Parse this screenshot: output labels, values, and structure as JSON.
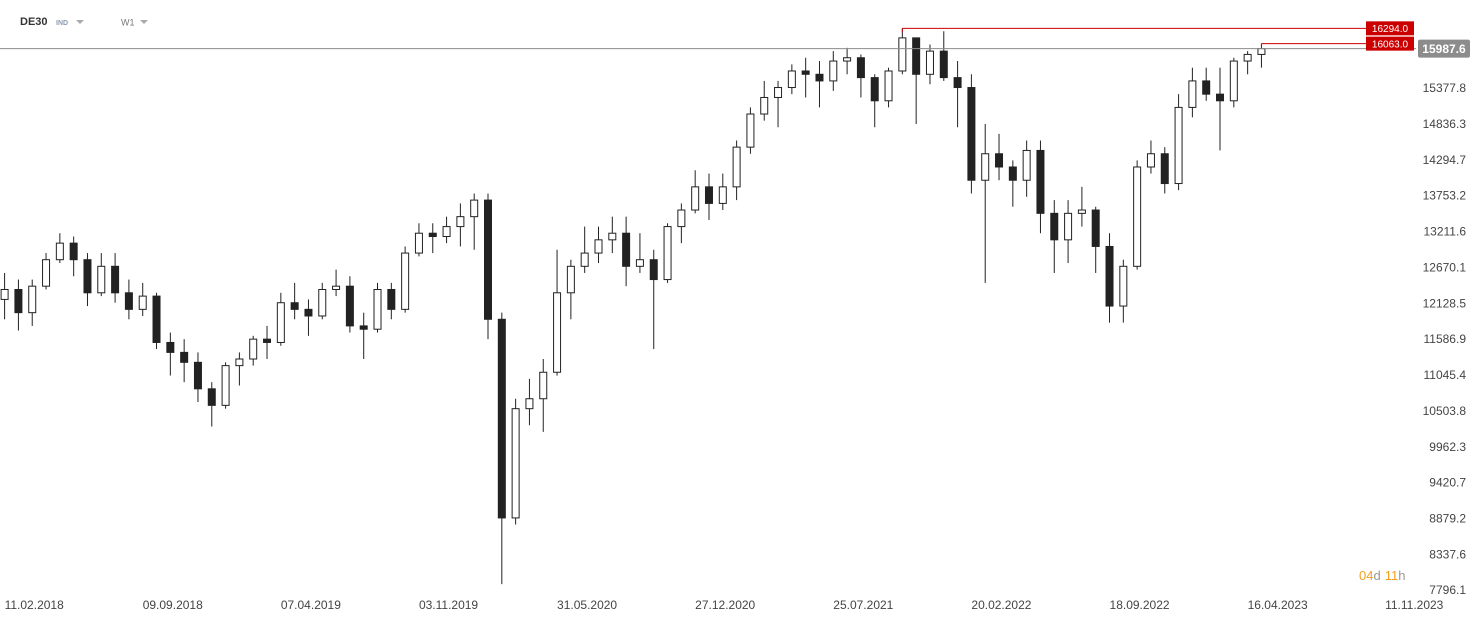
{
  "header": {
    "symbol": "DE30",
    "kind": "IND",
    "interval": "W1"
  },
  "countdown": {
    "days": "04",
    "days_unit": "d",
    "hours": "11",
    "hours_unit": "h"
  },
  "chart_data": {
    "type": "candlestick",
    "x": [
      "11.02.2018",
      "04.03.2018",
      "25.03.2018",
      "15.04.2018",
      "06.05.2018",
      "27.05.2018",
      "17.06.2018",
      "08.07.2018",
      "29.07.2018",
      "19.08.2018",
      "09.09.2018",
      "30.09.2018",
      "21.10.2018",
      "11.11.2018",
      "02.12.2018",
      "23.12.2018",
      "13.01.2019",
      "03.02.2019",
      "24.02.2019",
      "17.03.2019",
      "07.04.2019",
      "28.04.2019",
      "19.05.2019",
      "09.06.2019",
      "30.06.2019",
      "21.07.2019",
      "11.08.2019",
      "01.09.2019",
      "22.09.2019",
      "13.10.2019",
      "03.11.2019",
      "24.11.2019",
      "15.12.2019",
      "05.01.2020",
      "26.01.2020",
      "16.02.2020",
      "08.03.2020",
      "29.03.2020",
      "19.04.2020",
      "10.05.2020",
      "31.05.2020",
      "21.06.2020",
      "12.07.2020",
      "02.08.2020",
      "23.08.2020",
      "13.09.2020",
      "04.10.2020",
      "25.10.2020",
      "15.11.2020",
      "06.12.2020",
      "27.12.2020",
      "17.01.2021",
      "07.02.2021",
      "28.02.2021",
      "21.03.2021",
      "11.04.2021",
      "02.05.2021",
      "23.05.2021",
      "13.06.2021",
      "04.07.2021",
      "25.07.2021",
      "15.08.2021",
      "05.09.2021",
      "26.09.2021",
      "17.10.2021",
      "07.11.2021",
      "28.11.2021",
      "19.12.2021",
      "09.01.2022",
      "30.01.2022",
      "20.02.2022",
      "13.03.2022",
      "03.04.2022",
      "24.04.2022",
      "15.05.2022",
      "05.06.2022",
      "26.06.2022",
      "17.07.2022",
      "07.08.2022",
      "28.08.2022",
      "18.09.2022",
      "09.10.2022",
      "30.10.2022",
      "20.11.2022",
      "11.12.2022",
      "01.01.2023",
      "22.01.2023",
      "12.02.2023",
      "05.03.2023",
      "26.03.2023",
      "16.04.2023",
      "07.05.2023"
    ],
    "open": [
      12200,
      12350,
      12000,
      12400,
      12800,
      13050,
      12800,
      12300,
      12700,
      12300,
      12050,
      12250,
      11550,
      11400,
      11250,
      10850,
      10600,
      11200,
      11300,
      11600,
      11550,
      12150,
      12050,
      11950,
      12350,
      12400,
      11800,
      11750,
      12350,
      12050,
      12900,
      13200,
      13150,
      13300,
      13450,
      13700,
      11900,
      8900,
      10550,
      10700,
      11100,
      12300,
      12700,
      12900,
      13100,
      13200,
      12700,
      12800,
      12500,
      13300,
      13550,
      13900,
      13650,
      13900,
      14500,
      15000,
      15250,
      15400,
      15650,
      15600,
      15500,
      15800,
      15850,
      15550,
      15200,
      15650,
      16150,
      15600,
      15950,
      15550,
      15400,
      14000,
      14400,
      14200,
      14000,
      14450,
      13500,
      13100,
      13500,
      13550,
      13000,
      12100,
      12700,
      14200,
      14400,
      13950,
      15100,
      15500,
      15300,
      15200,
      15800,
      15900
    ],
    "high": [
      12600,
      12500,
      12500,
      12900,
      13200,
      13150,
      12900,
      12900,
      12900,
      12500,
      12450,
      12300,
      11700,
      11600,
      11400,
      10950,
      11250,
      11400,
      11650,
      11800,
      12300,
      12450,
      12200,
      12450,
      12650,
      12550,
      12000,
      12450,
      12450,
      13000,
      13350,
      13350,
      13450,
      13650,
      13800,
      13800,
      12000,
      10700,
      11000,
      11300,
      12950,
      12800,
      13300,
      13300,
      13450,
      13450,
      13200,
      12950,
      13350,
      13650,
      14150,
      14100,
      14100,
      14600,
      15100,
      15500,
      15500,
      15750,
      15850,
      15800,
      15950,
      16000,
      15900,
      15600,
      15700,
      16294,
      16150,
      16050,
      16250,
      15800,
      15600,
      14850,
      14700,
      14300,
      14600,
      14600,
      13700,
      13700,
      13900,
      13600,
      13200,
      12800,
      14300,
      14600,
      14500,
      15300,
      15700,
      15700,
      15700,
      15850,
      15950,
      16063
    ],
    "low": [
      11900,
      11730,
      11800,
      12350,
      12750,
      12550,
      12100,
      12250,
      12150,
      11900,
      11950,
      11450,
      11050,
      10950,
      10650,
      10280,
      10550,
      10900,
      11200,
      11300,
      11500,
      11900,
      11650,
      11900,
      12250,
      11700,
      11300,
      11700,
      11900,
      12000,
      12850,
      12900,
      13050,
      13000,
      12950,
      11600,
      7900,
      8800,
      10300,
      10200,
      11050,
      11900,
      12600,
      12750,
      12900,
      12400,
      12600,
      11450,
      12450,
      13050,
      13500,
      13400,
      13550,
      13700,
      14400,
      14900,
      14800,
      15300,
      15250,
      15100,
      15350,
      15600,
      15250,
      14800,
      15100,
      15600,
      14850,
      15450,
      15500,
      14800,
      13800,
      12450,
      14000,
      13600,
      13750,
      13200,
      12600,
      12750,
      13300,
      12600,
      11850,
      11850,
      12650,
      14100,
      13800,
      13850,
      14950,
      15200,
      14450,
      15100,
      15600,
      15700
    ],
    "close": [
      12350,
      12000,
      12400,
      12800,
      13050,
      12800,
      12300,
      12700,
      12300,
      12050,
      12250,
      11550,
      11400,
      11250,
      10850,
      10600,
      11200,
      11300,
      11600,
      11550,
      12150,
      12050,
      11950,
      12350,
      12400,
      11800,
      11750,
      12350,
      12050,
      12900,
      13200,
      13150,
      13300,
      13450,
      13700,
      11900,
      8900,
      10550,
      10700,
      11100,
      12300,
      12700,
      12900,
      13100,
      13200,
      12700,
      12800,
      12500,
      13300,
      13550,
      13900,
      13650,
      13900,
      14500,
      15000,
      15250,
      15400,
      15650,
      15600,
      15500,
      15800,
      15850,
      15550,
      15200,
      15650,
      16150,
      15600,
      15950,
      15550,
      15400,
      14000,
      14400,
      14200,
      14000,
      14450,
      13500,
      13100,
      13500,
      13550,
      13000,
      12100,
      12700,
      14200,
      14400,
      13950,
      15100,
      15500,
      15300,
      15200,
      15800,
      15900,
      15987.6
    ],
    "up_color": "#ffffff",
    "down_color": "#222222",
    "edge_color": "#222222",
    "xlim": [
      "04.02.2018",
      "28.12.2023"
    ],
    "xticks": [
      "11.02.2018",
      "09.09.2018",
      "07.04.2019",
      "03.11.2019",
      "31.05.2020",
      "27.12.2020",
      "25.07.2021",
      "20.02.2022",
      "18.09.2022",
      "16.04.2023",
      "11.11.2023"
    ],
    "ylim": [
      7736,
      16722
    ],
    "yticks": [
      7796.1,
      8337.6,
      8879.2,
      9420.7,
      9962.3,
      10503.8,
      11045.4,
      11586.9,
      12128.5,
      12670.1,
      13211.6,
      13753.2,
      14294.7,
      14836.3,
      15377.8
    ],
    "grid": false,
    "price_line": {
      "value": 15987.6,
      "color": "#8c8c8c"
    },
    "levels": [
      {
        "value": 16294,
        "label": "16294.0",
        "color": "#cc0000"
      },
      {
        "value": 16063,
        "label": "16063.0",
        "color": "#cc0000"
      }
    ]
  }
}
